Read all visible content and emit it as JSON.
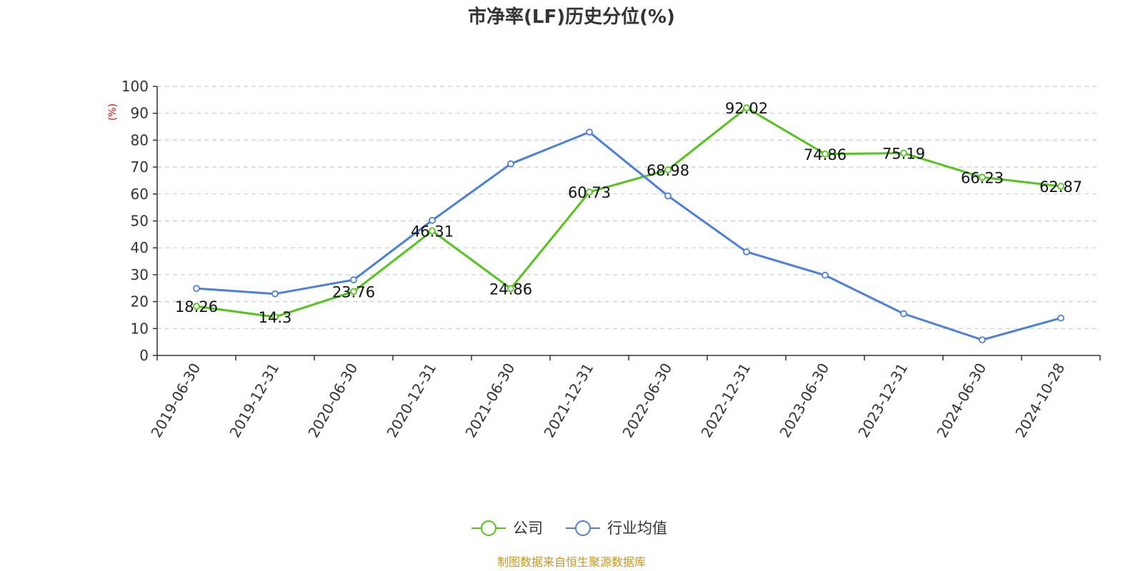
{
  "chart_data": {
    "type": "line",
    "title": "市净率(LF)历史分位(%)",
    "ylabel": "(%)",
    "ylim": [
      0,
      100
    ],
    "yticks": [
      0,
      10,
      20,
      30,
      40,
      50,
      60,
      70,
      80,
      90,
      100
    ],
    "grid": true,
    "legend_position": "bottom",
    "categories": [
      "2019-06-30",
      "2019-12-31",
      "2020-06-30",
      "2020-12-31",
      "2021-06-30",
      "2021-12-31",
      "2022-06-30",
      "2022-12-31",
      "2023-06-30",
      "2023-12-31",
      "2024-06-30",
      "2024-10-28"
    ],
    "series": [
      {
        "name": "公司",
        "color": "#52c41a",
        "values": [
          18.26,
          14.3,
          23.76,
          46.31,
          24.86,
          60.73,
          68.98,
          92.02,
          74.86,
          75.19,
          66.23,
          62.87
        ],
        "labels": [
          "18.26",
          "14.3",
          "23.76",
          "46.31",
          "24.86",
          "60.73",
          "68.98",
          "92.02",
          "74.86",
          "75.19",
          "66.23",
          "62.87"
        ]
      },
      {
        "name": "行业均值",
        "color": "#4a7fdb",
        "values": [
          24.9,
          22.9,
          28.1,
          50.2,
          71.2,
          83.0,
          59.3,
          38.5,
          29.8,
          15.5,
          5.8,
          13.9
        ]
      }
    ]
  },
  "footer": {
    "source": "制图数据来自恒生聚源数据库",
    "source_color": "#c8961e"
  },
  "colors": {
    "axis": "#333333",
    "grid": "#cccccc",
    "unit": "#ff0000"
  }
}
